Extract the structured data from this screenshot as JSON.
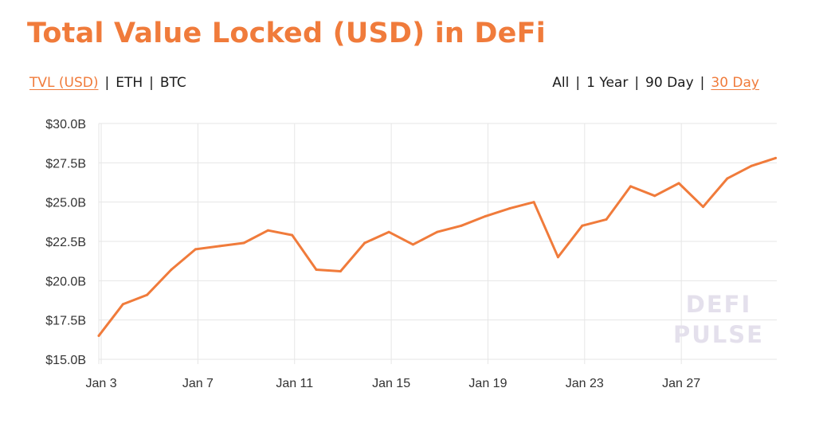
{
  "header": {
    "title": "Total Value Locked (USD) in DeFi"
  },
  "denomination_tabs": [
    {
      "label": "TVL (USD)",
      "active": true
    },
    {
      "label": "ETH",
      "active": false
    },
    {
      "label": "BTC",
      "active": false
    }
  ],
  "range_tabs": [
    {
      "label": "All",
      "active": false
    },
    {
      "label": "1 Year",
      "active": false
    },
    {
      "label": "90 Day",
      "active": false
    },
    {
      "label": "30 Day",
      "active": true
    }
  ],
  "separator": "|",
  "watermark": {
    "line1": "DEFI",
    "line2": "PULSE"
  },
  "colors": {
    "accent": "#f07b3b",
    "grid": "#e6e6e6",
    "text": "#1b1b1b",
    "watermark": "#e4e0ec"
  },
  "chart_data": {
    "type": "line",
    "title": "Total Value Locked (USD) in DeFi",
    "xlabel": "",
    "ylabel": "",
    "grid": true,
    "y_ticks": [
      15.0,
      17.5,
      20.0,
      22.5,
      25.0,
      27.5,
      30.0
    ],
    "y_tick_labels": [
      "$15.0B",
      "$17.5B",
      "$20.0B",
      "$22.5B",
      "$25.0B",
      "$27.5B",
      "$30.0B"
    ],
    "ylim": [
      15.0,
      30.0
    ],
    "x_tick_labels": [
      "Jan 3",
      "Jan 7",
      "Jan 11",
      "Jan 15",
      "Jan 19",
      "Jan 23",
      "Jan 27"
    ],
    "x_ticks": [
      3,
      7,
      11,
      15,
      19,
      23,
      27
    ],
    "xlim": [
      2.9,
      30.95
    ],
    "series": [
      {
        "color": "#f07b3b",
        "x": [
          2.9,
          3.9,
          4.9,
          5.9,
          6.9,
          7.9,
          8.9,
          9.9,
          10.9,
          11.9,
          12.9,
          13.9,
          14.9,
          15.9,
          16.9,
          17.9,
          18.9,
          19.9,
          20.9,
          21.9,
          22.9,
          23.9,
          24.9,
          25.9,
          26.9,
          27.9,
          28.9,
          29.9,
          30.9
        ],
        "values": [
          16.5,
          18.5,
          19.1,
          20.7,
          22.0,
          22.2,
          22.4,
          23.2,
          22.9,
          20.7,
          20.6,
          22.4,
          23.1,
          22.3,
          23.1,
          23.5,
          24.1,
          24.6,
          25.0,
          21.5,
          23.5,
          23.9,
          26.0,
          25.4,
          26.2,
          24.7,
          26.5,
          27.3,
          27.8
        ]
      }
    ]
  }
}
